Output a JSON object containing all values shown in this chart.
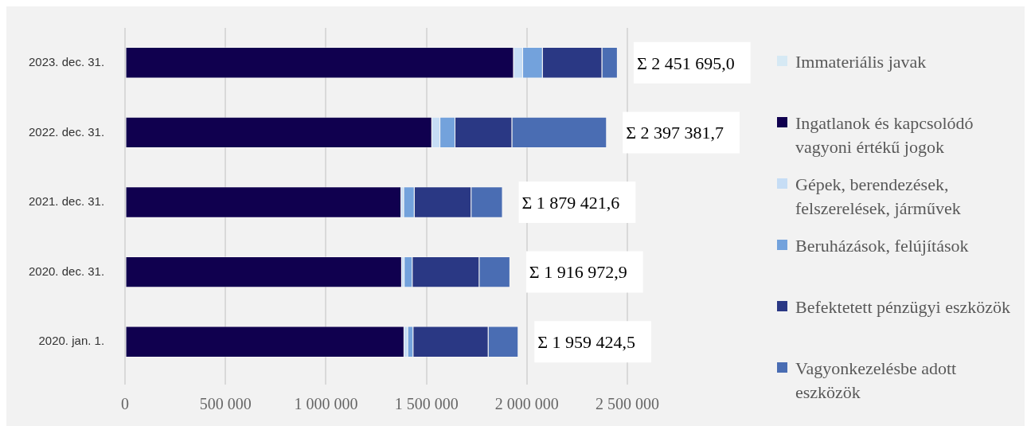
{
  "chart_data": {
    "type": "bar",
    "orientation": "horizontal",
    "stacked": true,
    "categories": [
      "2023. dec. 31.",
      "2022. dec. 31.",
      "2021. dec. 31.",
      "2020. dec. 31.",
      "2020. jan. 1."
    ],
    "series": [
      {
        "name": "Immateriális javak",
        "color": "#d6e9f4",
        "values": [
          5000,
          5000,
          5000,
          5000,
          5000
        ]
      },
      {
        "name": "Ingatlanok és kapcsolódó vagyoni értékű jogok",
        "color": "#10004f",
        "values": [
          1930000,
          1523000,
          1370000,
          1373000,
          1385000
        ]
      },
      {
        "name": "Gépek, berendezések, felszerelések, járművek",
        "color": "#c6ddf5",
        "values": [
          46000,
          41000,
          13000,
          13000,
          18000
        ]
      },
      {
        "name": "Beruházások, felújítások",
        "color": "#73a2dc",
        "values": [
          98000,
          75000,
          53000,
          40000,
          27000
        ]
      },
      {
        "name": "Befektetett pénzügyi eszközök",
        "color": "#2a3884",
        "values": [
          296000,
          283000,
          283000,
          333000,
          374000
        ]
      },
      {
        "name": "Vagyonkezelésbe adott eszközök",
        "color": "#4a6db3",
        "values": [
          77000,
          471000,
          156000,
          153000,
          149000
        ]
      }
    ],
    "totals": [
      "Σ 2 451 695,0",
      "Σ 2 397 381,7",
      "Σ 1 879 421,6",
      "Σ 1 916 972,9",
      "Σ 1 959 424,5"
    ],
    "xlim": [
      0,
      2500000
    ],
    "xticks": [
      {
        "value": 0,
        "label": "0"
      },
      {
        "value": 500000,
        "label": "500 000"
      },
      {
        "value": 1000000,
        "label": "1 000 000"
      },
      {
        "value": 1500000,
        "label": "1 500 000"
      },
      {
        "value": 2000000,
        "label": "2 000 000"
      },
      {
        "value": 2500000,
        "label": "2 500 000"
      }
    ],
    "grid": "x",
    "legend": "right"
  }
}
